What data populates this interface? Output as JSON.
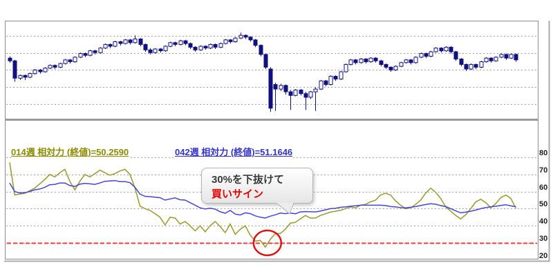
{
  "legend": {
    "rsi14": {
      "label": "014週 相対力 (終値)=50.2590",
      "color": "#8b8b00"
    },
    "rsi42": {
      "label": "042週 相対力 (終値)=51.1646",
      "color": "#3333cc"
    }
  },
  "tooltip": {
    "line1": "30%を下抜けて",
    "line2": "買いサイン",
    "line2_color": "#e60000"
  },
  "axis": {
    "ticks": [
      "80",
      "70",
      "60",
      "50",
      "40",
      "30",
      "20"
    ]
  },
  "colors": {
    "candle": "#10107e",
    "grid": "#9f9f9f",
    "border": "#8b8b8b",
    "signal_red": "#ef3b3b",
    "circle_red": "#dc1414"
  },
  "chart_data": [
    {
      "type": "candlestick",
      "panel": "price",
      "title": "",
      "scale_note": "no axis labels visible; values on relative 0-100 scale",
      "color": "#10107e",
      "candles": [
        [
          65,
          67,
          60,
          62
        ],
        [
          62,
          63,
          39,
          43
        ],
        [
          43,
          47,
          41,
          46
        ],
        [
          46,
          47,
          41,
          44
        ],
        [
          44,
          49,
          43,
          48
        ],
        [
          48,
          53,
          47,
          52
        ],
        [
          52,
          53,
          48,
          50
        ],
        [
          50,
          55,
          49,
          54
        ],
        [
          54,
          58,
          53,
          57
        ],
        [
          57,
          58,
          53,
          55
        ],
        [
          55,
          60,
          54,
          59
        ],
        [
          59,
          64,
          58,
          63
        ],
        [
          63,
          64,
          59,
          61
        ],
        [
          61,
          67,
          60,
          66
        ],
        [
          66,
          71,
          65,
          70
        ],
        [
          70,
          71,
          66,
          68
        ],
        [
          68,
          74,
          67,
          73
        ],
        [
          73,
          74,
          69,
          71
        ],
        [
          71,
          77,
          70,
          76
        ],
        [
          76,
          81,
          75,
          80
        ],
        [
          80,
          81,
          76,
          78
        ],
        [
          78,
          84,
          77,
          83
        ],
        [
          83,
          84,
          79,
          81
        ],
        [
          81,
          86,
          80,
          85
        ],
        [
          85,
          86,
          80,
          82
        ],
        [
          82,
          90,
          81,
          86
        ],
        [
          86,
          87,
          78,
          80
        ],
        [
          80,
          81,
          72,
          74
        ],
        [
          74,
          76,
          69,
          71
        ],
        [
          71,
          76,
          70,
          75
        ],
        [
          75,
          76,
          71,
          73
        ],
        [
          73,
          79,
          72,
          78
        ],
        [
          78,
          83,
          77,
          82
        ],
        [
          82,
          83,
          78,
          80
        ],
        [
          80,
          85,
          79,
          84
        ],
        [
          84,
          85,
          79,
          81
        ],
        [
          81,
          82,
          75,
          77
        ],
        [
          77,
          78,
          72,
          74
        ],
        [
          74,
          79,
          73,
          78
        ],
        [
          78,
          79,
          74,
          76
        ],
        [
          76,
          81,
          75,
          80
        ],
        [
          80,
          81,
          75,
          77
        ],
        [
          77,
          82,
          76,
          81
        ],
        [
          81,
          86,
          80,
          85
        ],
        [
          85,
          86,
          81,
          83
        ],
        [
          83,
          88,
          82,
          87
        ],
        [
          87,
          93,
          86,
          90
        ],
        [
          90,
          91,
          86,
          88
        ],
        [
          88,
          89,
          83,
          85
        ],
        [
          85,
          86,
          77,
          79
        ],
        [
          79,
          80,
          67,
          69
        ],
        [
          69,
          70,
          53,
          55
        ],
        [
          53,
          55,
          6,
          10
        ],
        [
          36,
          38,
          7,
          31
        ],
        [
          31,
          37,
          29,
          35
        ],
        [
          35,
          36,
          25,
          28
        ],
        [
          28,
          30,
          8,
          24
        ],
        [
          24,
          31,
          23,
          30
        ],
        [
          30,
          31,
          24,
          26
        ],
        [
          26,
          28,
          8,
          22
        ],
        [
          22,
          29,
          20,
          28
        ],
        [
          28,
          33,
          7,
          31
        ],
        [
          31,
          41,
          30,
          40
        ],
        [
          40,
          41,
          34,
          36
        ],
        [
          36,
          46,
          35,
          45
        ],
        [
          45,
          46,
          40,
          42
        ],
        [
          42,
          51,
          41,
          50
        ],
        [
          50,
          59,
          49,
          58
        ],
        [
          58,
          64,
          57,
          63
        ],
        [
          63,
          64,
          58,
          60
        ],
        [
          60,
          65,
          59,
          64
        ],
        [
          64,
          65,
          59,
          61
        ],
        [
          61,
          66,
          60,
          65
        ],
        [
          65,
          66,
          60,
          62
        ],
        [
          62,
          63,
          56,
          58
        ],
        [
          58,
          59,
          53,
          55
        ],
        [
          55,
          56,
          50,
          52
        ],
        [
          52,
          57,
          51,
          56
        ],
        [
          56,
          61,
          55,
          60
        ],
        [
          60,
          64,
          59,
          63
        ],
        [
          63,
          64,
          58,
          60
        ],
        [
          60,
          67,
          59,
          66
        ],
        [
          66,
          71,
          65,
          70
        ],
        [
          70,
          71,
          65,
          67
        ],
        [
          67,
          73,
          66,
          72
        ],
        [
          72,
          77,
          71,
          76
        ],
        [
          76,
          77,
          71,
          73
        ],
        [
          73,
          78,
          72,
          77
        ],
        [
          77,
          78,
          70,
          72
        ],
        [
          72,
          73,
          62,
          64
        ],
        [
          64,
          65,
          56,
          58
        ],
        [
          58,
          59,
          51,
          53
        ],
        [
          53,
          59,
          52,
          58
        ],
        [
          58,
          59,
          53,
          55
        ],
        [
          55,
          62,
          54,
          61
        ],
        [
          61,
          66,
          60,
          65
        ],
        [
          65,
          66,
          60,
          62
        ],
        [
          62,
          67,
          61,
          66
        ],
        [
          66,
          70,
          65,
          69
        ],
        [
          69,
          70,
          63,
          65
        ],
        [
          65,
          70,
          64,
          69
        ],
        [
          69,
          70,
          61,
          63
        ]
      ]
    },
    {
      "type": "line",
      "panel": "relative-strength",
      "yticks": [
        80,
        70,
        60,
        50,
        40,
        30,
        20
      ],
      "ylim": [
        20,
        91
      ],
      "grid": true,
      "legend_position": "top-inside",
      "signal_level": 30,
      "signal_color": "#ef3b3b",
      "series": [
        {
          "name": "014週 相対力 (終値)=50.2590",
          "last": 50.259,
          "color": "#8b8b00",
          "line_color": "#99992b",
          "values": [
            77,
            58,
            58.5,
            59,
            60.5,
            62,
            64.5,
            67,
            70,
            68.5,
            71,
            73,
            66,
            61,
            66,
            70,
            68.5,
            70.5,
            72.5,
            71,
            69.5,
            70.5,
            72,
            73,
            70,
            62,
            51.5,
            50,
            49,
            47,
            45,
            40.5,
            45,
            44.5,
            41,
            42.5,
            40,
            37,
            40,
            36.5,
            40,
            42.5,
            39.5,
            36,
            41,
            35,
            38,
            40,
            34.5,
            31,
            31.5,
            27.5,
            32,
            35.5,
            35.5,
            38,
            41.5,
            42,
            44,
            46,
            44.5,
            44.5,
            46,
            47,
            48,
            48.5,
            49,
            50,
            51,
            50.5,
            52,
            52.5,
            54,
            55,
            58,
            59,
            58,
            54.5,
            52,
            50,
            50.5,
            52.5,
            55,
            59,
            62,
            59.5,
            56,
            51,
            48.5,
            46,
            44,
            46.5,
            50,
            54,
            55.5,
            53.5,
            50.5,
            53,
            56.5,
            58,
            56,
            50.26
          ]
        },
        {
          "name": "042週 相対力 (終値)=51.1646",
          "last": 51.1646,
          "color": "#3333cc",
          "line_color": "#4343dd",
          "values": [
            65,
            60,
            59.2,
            59.3,
            60,
            61,
            61.5,
            62.5,
            64,
            64.2,
            65,
            65,
            63.5,
            63,
            64.3,
            64.8,
            64.5,
            64.2,
            65,
            66,
            66.2,
            66.4,
            65.8,
            65.8,
            65.2,
            62.5,
            58.5,
            57.2,
            57,
            56.7,
            56.4,
            55,
            55.7,
            56.3,
            55.2,
            55,
            53.5,
            52,
            50.5,
            49.8,
            50.3,
            49.7,
            48.2,
            47.3,
            49,
            46.8,
            46.3,
            47.6,
            47.1,
            45.8,
            45,
            44.5,
            45.6,
            46.4,
            47.4,
            47.1,
            47.4,
            47,
            48.1,
            48.3,
            48.2,
            48.1,
            48.6,
            49.3,
            50,
            50.2,
            50.8,
            51,
            51.4,
            51.7,
            52,
            52,
            52,
            52,
            52,
            51.8,
            51.2,
            51,
            50.6,
            50.5,
            50.8,
            51.2,
            51.8,
            52.4,
            52.9,
            52.6,
            51.8,
            51.2,
            50,
            48.7,
            47.6,
            48,
            48.5,
            49.2,
            50,
            50.7,
            51.1,
            51.4,
            51.9,
            52.3,
            51.6,
            51.16
          ]
        }
      ],
      "annotation": {
        "text": [
          "30%を下抜けて",
          "買いサイン"
        ],
        "circle_at": {
          "index": 51,
          "value": 30
        },
        "circle_color": "#dc1414"
      }
    }
  ]
}
